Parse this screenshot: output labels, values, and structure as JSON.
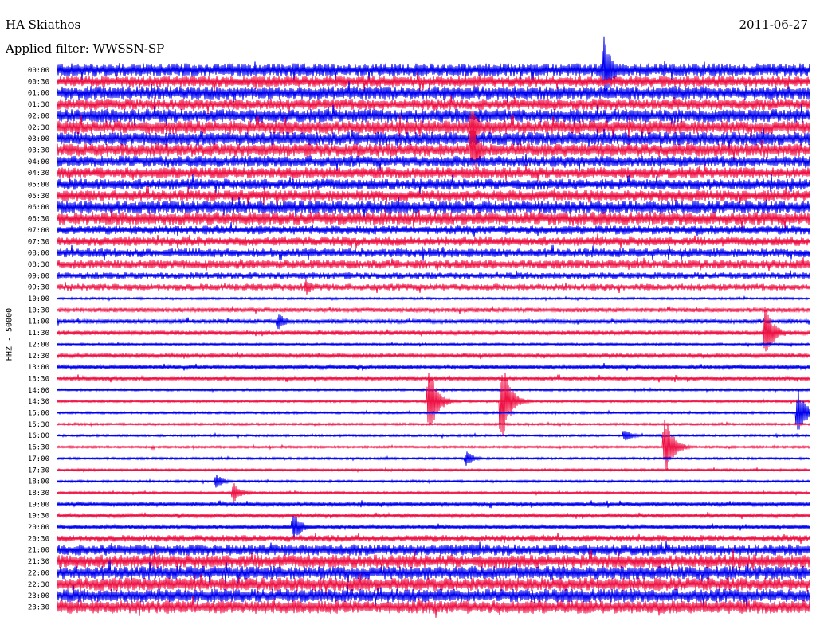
{
  "header": {
    "station": "HA Skiathos",
    "date": "2011-06-27",
    "filter": "Applied filter: WWSSN-SP"
  },
  "side_label": "HHZ - 50000",
  "colors": {
    "trace_a": "#0000ee",
    "trace_b": "#ee1144"
  },
  "chart_data": {
    "type": "line",
    "title": "HA Skiathos",
    "subtitle": "Applied filter: WWSSN-SP",
    "ylabel": "HHZ - 50000",
    "rows": [
      "00:00",
      "00:30",
      "01:00",
      "01:30",
      "02:00",
      "02:30",
      "03:00",
      "03:30",
      "04:00",
      "04:30",
      "05:00",
      "05:30",
      "06:00",
      "06:30",
      "07:00",
      "07:30",
      "08:00",
      "08:30",
      "09:00",
      "09:30",
      "10:00",
      "10:30",
      "11:00",
      "11:30",
      "12:00",
      "12:30",
      "13:00",
      "13:30",
      "14:00",
      "14:30",
      "15:00",
      "15:30",
      "16:00",
      "16:30",
      "17:00",
      "17:30",
      "18:00",
      "18:30",
      "19:00",
      "19:30",
      "20:00",
      "20:30",
      "21:00",
      "21:30",
      "22:00",
      "22:30",
      "23:00",
      "23:30"
    ],
    "row_noise": [
      6,
      5,
      6,
      5,
      6,
      6,
      6,
      6,
      5,
      5,
      5,
      5,
      6,
      6,
      4,
      4,
      4,
      4,
      3,
      3,
      1,
      2,
      2,
      2,
      1,
      2,
      2,
      2,
      1,
      1,
      1,
      1,
      1,
      1,
      1,
      1,
      1,
      1,
      2,
      2,
      2,
      3,
      5,
      6,
      6,
      6,
      6,
      6
    ],
    "events": [
      {
        "row": "00:00",
        "minute": 21.8,
        "amplitude": 45
      },
      {
        "row": "02:30",
        "minute": 16.5,
        "amplitude": 28
      },
      {
        "row": "03:30",
        "minute": 16.5,
        "amplitude": 42
      },
      {
        "row": "09:30",
        "minute": 9.9,
        "amplitude": 12
      },
      {
        "row": "11:00",
        "minute": 8.8,
        "amplitude": 12
      },
      {
        "row": "11:30",
        "minute": 28.2,
        "amplitude": 40
      },
      {
        "row": "14:30",
        "minute": 14.8,
        "amplitude": 50
      },
      {
        "row": "14:30",
        "minute": 17.7,
        "amplitude": 60
      },
      {
        "row": "15:00",
        "minute": 29.5,
        "amplitude": 35
      },
      {
        "row": "16:00",
        "minute": 22.6,
        "amplitude": 10
      },
      {
        "row": "16:30",
        "minute": 24.2,
        "amplitude": 45
      },
      {
        "row": "17:00",
        "minute": 16.3,
        "amplitude": 10
      },
      {
        "row": "18:00",
        "minute": 6.3,
        "amplitude": 10
      },
      {
        "row": "18:30",
        "minute": 7.0,
        "amplitude": 14
      },
      {
        "row": "20:00",
        "minute": 9.4,
        "amplitude": 20
      },
      {
        "row": "21:00",
        "minute": 16.5,
        "amplitude": 12
      }
    ]
  }
}
